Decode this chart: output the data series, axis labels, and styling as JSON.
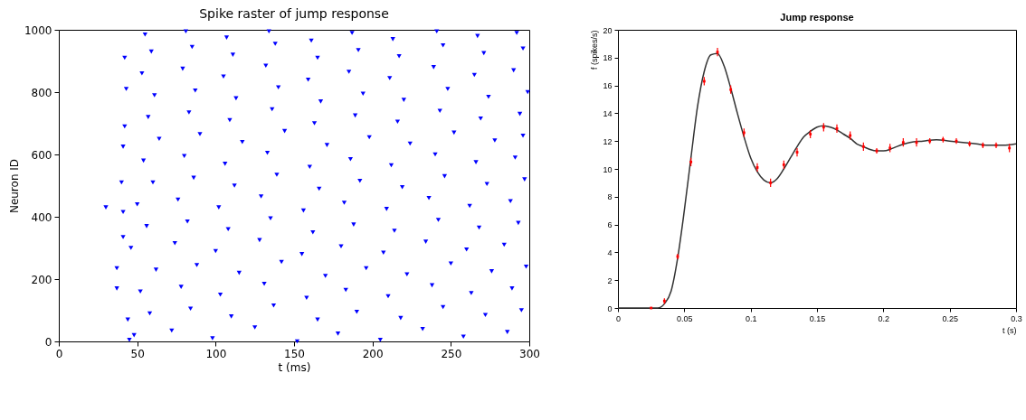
{
  "chart_data": [
    {
      "type": "scatter",
      "title": "Spike raster of jump response",
      "xlabel": "t (ms)",
      "ylabel": "Neuron ID",
      "color": "#0000ff",
      "marker": "triangle",
      "grid": false,
      "xlim": [
        0,
        300
      ],
      "xticks": [
        0,
        50,
        100,
        150,
        200,
        250,
        300
      ],
      "ylim": [
        0,
        1000
      ],
      "yticks": [
        0,
        200,
        400,
        600,
        800,
        1000
      ],
      "x": [
        30,
        37,
        37,
        40,
        41,
        41,
        42,
        43,
        41,
        42,
        44,
        45,
        48,
        72,
        98,
        125,
        152,
        178,
        205,
        232,
        258,
        286,
        58,
        84,
        110,
        137,
        165,
        190,
        218,
        245,
        272,
        295,
        52,
        78,
        103,
        131,
        158,
        183,
        210,
        238,
        263,
        289,
        62,
        88,
        115,
        142,
        170,
        196,
        222,
        250,
        276,
        298,
        46,
        74,
        100,
        128,
        155,
        180,
        207,
        234,
        260,
        284,
        56,
        82,
        108,
        135,
        162,
        188,
        214,
        242,
        268,
        293,
        50,
        76,
        102,
        129,
        156,
        182,
        209,
        236,
        262,
        288,
        60,
        86,
        112,
        139,
        166,
        192,
        219,
        246,
        273,
        297,
        54,
        80,
        106,
        133,
        160,
        186,
        212,
        240,
        266,
        291,
        64,
        90,
        117,
        144,
        171,
        198,
        224,
        252,
        278,
        296,
        57,
        83,
        109,
        136,
        163,
        189,
        216,
        243,
        269,
        294,
        61,
        87,
        113,
        140,
        167,
        194,
        220,
        248,
        274,
        299,
        53,
        79,
        105,
        132,
        159,
        185,
        211,
        239,
        265,
        290,
        59,
        85,
        111,
        138,
        165,
        191,
        217,
        245,
        271,
        296,
        55,
        81,
        107,
        134,
        161,
        187,
        213,
        241,
        267,
        292
      ],
      "values": [
        430,
        170,
        235,
        510,
        415,
        335,
        910,
        810,
        625,
        690,
        70,
        5,
        20,
        35,
        10,
        45,
        0,
        25,
        5,
        40,
        15,
        30,
        90,
        105,
        80,
        115,
        70,
        95,
        75,
        110,
        85,
        100,
        160,
        175,
        150,
        185,
        140,
        165,
        145,
        180,
        155,
        170,
        230,
        245,
        220,
        255,
        210,
        235,
        215,
        250,
        225,
        240,
        300,
        315,
        290,
        325,
        280,
        305,
        285,
        320,
        295,
        310,
        370,
        385,
        360,
        395,
        350,
        375,
        355,
        390,
        365,
        380,
        440,
        455,
        430,
        465,
        420,
        445,
        425,
        460,
        435,
        450,
        510,
        525,
        500,
        535,
        490,
        515,
        495,
        530,
        505,
        520,
        580,
        595,
        570,
        605,
        560,
        585,
        565,
        600,
        575,
        590,
        650,
        665,
        640,
        675,
        630,
        655,
        635,
        670,
        645,
        660,
        720,
        735,
        710,
        745,
        700,
        725,
        705,
        740,
        715,
        730,
        790,
        805,
        780,
        815,
        770,
        795,
        775,
        810,
        785,
        800,
        860,
        875,
        850,
        885,
        840,
        865,
        845,
        880,
        855,
        870,
        930,
        945,
        920,
        955,
        910,
        935,
        915,
        950,
        925,
        940,
        985,
        995,
        975,
        995,
        965,
        990,
        970,
        995,
        980,
        990
      ]
    },
    {
      "type": "scatter",
      "title": "Jump response",
      "xlabel": "t (s)",
      "ylabel": "f (spikes/s)",
      "grid": false,
      "xlim": [
        0,
        0.3
      ],
      "xticks": [
        0,
        0.05,
        0.1,
        0.15,
        0.2,
        0.25,
        0.3
      ],
      "ylim": [
        0,
        20
      ],
      "yticks": [
        0,
        2,
        4,
        6,
        8,
        10,
        12,
        14,
        16,
        18,
        20
      ],
      "series": [
        {
          "type": "line",
          "color": "#333333",
          "x": [
            0,
            0.03,
            0.035,
            0.04,
            0.045,
            0.05,
            0.055,
            0.06,
            0.065,
            0.07,
            0.075,
            0.08,
            0.085,
            0.09,
            0.095,
            0.1,
            0.105,
            0.11,
            0.115,
            0.12,
            0.125,
            0.13,
            0.135,
            0.14,
            0.145,
            0.15,
            0.155,
            0.16,
            0.165,
            0.17,
            0.175,
            0.18,
            0.185,
            0.19,
            0.195,
            0.2,
            0.205,
            0.21,
            0.22,
            0.23,
            0.24,
            0.25,
            0.26,
            0.27,
            0.28,
            0.29,
            0.3
          ],
          "values": [
            0,
            0,
            0.3,
            1.2,
            3.6,
            7,
            10.8,
            14.5,
            17,
            18.2,
            18.3,
            17.4,
            15.8,
            14,
            12.3,
            10.8,
            9.8,
            9.2,
            9,
            9.3,
            10,
            10.8,
            11.6,
            12.3,
            12.7,
            13,
            13.1,
            13,
            12.8,
            12.5,
            12.2,
            11.8,
            11.6,
            11.4,
            11.3,
            11.3,
            11.4,
            11.6,
            11.9,
            12,
            12.1,
            12,
            11.9,
            11.8,
            11.7,
            11.7,
            11.8
          ]
        },
        {
          "color": "#ff0000",
          "marker": "square",
          "x": [
            0.025,
            0.035,
            0.045,
            0.055,
            0.065,
            0.075,
            0.085,
            0.095,
            0.105,
            0.115,
            0.125,
            0.135,
            0.145,
            0.155,
            0.165,
            0.175,
            0.185,
            0.195,
            0.205,
            0.215,
            0.225,
            0.235,
            0.245,
            0.255,
            0.265,
            0.275,
            0.285,
            0.295
          ],
          "values": [
            0,
            0.5,
            3.7,
            10.5,
            16.3,
            18.4,
            15.7,
            12.6,
            10.1,
            9,
            10.3,
            11.2,
            12.5,
            13,
            12.9,
            12.4,
            11.6,
            11.3,
            11.5,
            11.9,
            11.9,
            12,
            12.1,
            12,
            11.8,
            11.7,
            11.7,
            11.5
          ],
          "errors": [
            null,
            0.2,
            0.2,
            0.3,
            0.3,
            0.3,
            0.3,
            0.3,
            0.3,
            0.3,
            0.3,
            0.3,
            0.3,
            0.3,
            0.3,
            0.3,
            0.3,
            0.2,
            0.3,
            0.3,
            0.3,
            0.2,
            0.2,
            0.2,
            0.2,
            0.2,
            0.2,
            0.3
          ]
        }
      ]
    }
  ]
}
